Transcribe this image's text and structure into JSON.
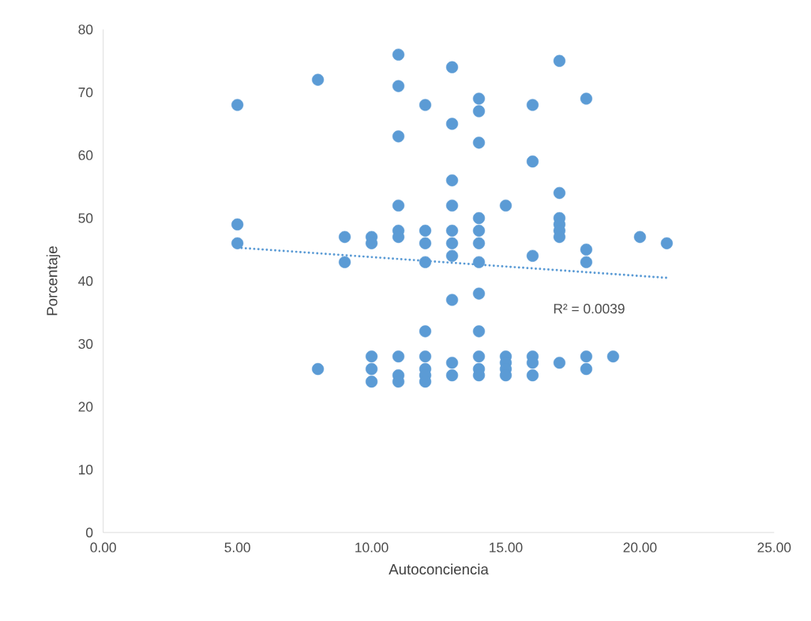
{
  "chart_data": {
    "type": "scatter",
    "xlabel": "Autoconciencia",
    "ylabel": "Porcentaje",
    "xlim": [
      0,
      25
    ],
    "ylim": [
      0,
      80
    ],
    "xticks": [
      {
        "value": 0,
        "label": "0.00"
      },
      {
        "value": 5,
        "label": "5.00"
      },
      {
        "value": 10,
        "label": "10.00"
      },
      {
        "value": 15,
        "label": "15.00"
      },
      {
        "value": 20,
        "label": "20.00"
      },
      {
        "value": 25,
        "label": "25.00"
      }
    ],
    "yticks": [
      0,
      10,
      20,
      30,
      40,
      50,
      60,
      70,
      80
    ],
    "grid": false,
    "marker": "circle",
    "annotations": [
      "R² = 0.0039"
    ],
    "series": [
      {
        "color": "#5b9bd5",
        "x": [
          5,
          5,
          5,
          8,
          8,
          9,
          9,
          10,
          10,
          10,
          10,
          10,
          11,
          11,
          11,
          11,
          11,
          11,
          11,
          11,
          11,
          12,
          12,
          12,
          12,
          12,
          12,
          12,
          12,
          12,
          13,
          13,
          13,
          13,
          13,
          13,
          13,
          13,
          13,
          13,
          14,
          14,
          14,
          14,
          14,
          14,
          14,
          14,
          14,
          14,
          14,
          14,
          15,
          15,
          15,
          15,
          15,
          16,
          16,
          16,
          16,
          16,
          16,
          17,
          17,
          17,
          17,
          17,
          17,
          17,
          18,
          18,
          18,
          18,
          18,
          19,
          20,
          21
        ],
        "values": [
          68,
          49,
          46,
          72,
          26,
          47,
          43,
          47,
          46,
          28,
          26,
          24,
          76,
          71,
          63,
          52,
          48,
          47,
          28,
          25,
          24,
          68,
          48,
          46,
          43,
          32,
          28,
          26,
          25,
          24,
          74,
          65,
          56,
          52,
          48,
          46,
          44,
          37,
          27,
          25,
          69,
          67,
          62,
          50,
          48,
          46,
          43,
          38,
          32,
          28,
          26,
          25,
          52,
          28,
          27,
          26,
          25,
          68,
          59,
          44,
          28,
          27,
          25,
          75,
          54,
          50,
          49,
          48,
          47,
          27,
          69,
          45,
          43,
          28,
          26,
          28,
          47,
          46
        ]
      },
      {
        "type": "line",
        "marker": "none",
        "color": "#5b9bd5",
        "line_style": "dotted",
        "x": [
          5,
          21
        ],
        "values": [
          45.3,
          40.5
        ]
      }
    ]
  }
}
